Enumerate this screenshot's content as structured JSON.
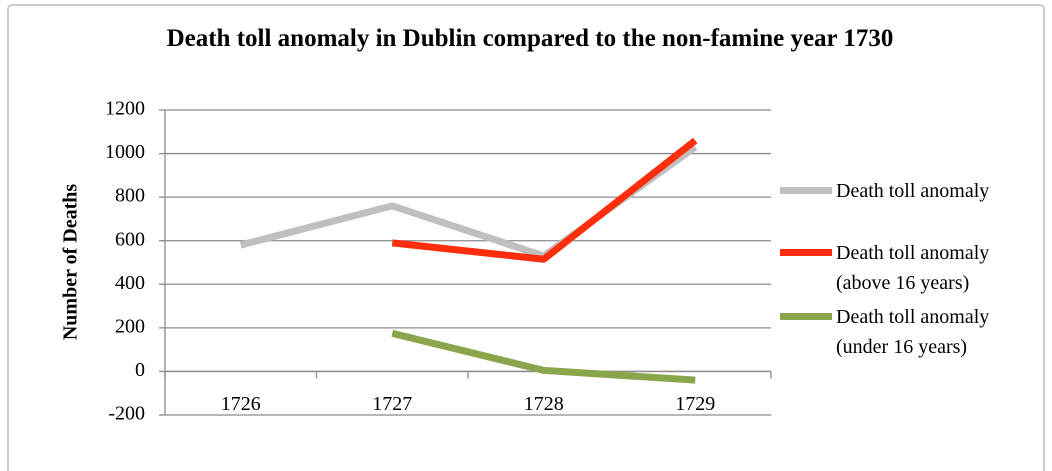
{
  "chart_data": {
    "type": "line",
    "title": "Death toll anomaly in Dublin compared to the non-famine year 1730",
    "y_label": "Number of Deaths",
    "categories": [
      "1726",
      "1727",
      "1728",
      "1729"
    ],
    "series": [
      {
        "name": "Death toll anomaly",
        "color": "#bfbfbf",
        "values": [
          580,
          760,
          530,
          1030
        ]
      },
      {
        "name": "Death toll anomaly (above 16 years)",
        "color": "#fe2e0c",
        "values": [
          null,
          590,
          515,
          1060
        ]
      },
      {
        "name": "Death toll anomaly (under 16 years)",
        "color": "#8ba54c",
        "values": [
          null,
          175,
          5,
          -40
        ]
      }
    ],
    "ylim": [
      -200,
      1200
    ],
    "yticks": [
      -200,
      0,
      200,
      400,
      600,
      800,
      1000,
      1200
    ],
    "grid": true,
    "legend": "right"
  }
}
